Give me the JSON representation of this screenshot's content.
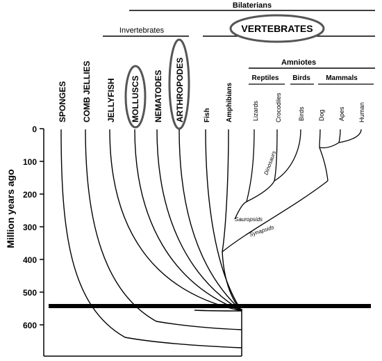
{
  "groups": {
    "bilaterians": "Bilaterians",
    "invertebrates": "Invertebrates",
    "vertebrates": "VERTEBRATES",
    "amniotes": "Amniotes",
    "reptiles": "Reptiles",
    "birds": "Birds",
    "mammals": "Mammals"
  },
  "taxa": {
    "sponges": "SPONGES",
    "comb_jellies": "COMB JELLIES",
    "jellyfish": "JELLYFISH",
    "molluscs": "MOLLUSCS",
    "nematodes": "NEMATODES",
    "arthropodes": "ARTHROPODES",
    "fish": "Fish",
    "amphibians": "Amphibians",
    "lizards": "Lizards",
    "crocodiles": "Crocodiles",
    "birds": "Birds",
    "dog": "Dog",
    "apes": "Apes",
    "human": "Human"
  },
  "clades": {
    "dinosaurs": "Dinosaurs",
    "sauropsids": "Sauropsids",
    "synapsids": "Synapsids"
  },
  "axis": {
    "label": "Million years ago",
    "ticks": [
      "0",
      "100",
      "200",
      "300",
      "400",
      "500",
      "600"
    ]
  },
  "highlighted": [
    "MOLLUSCS",
    "ARTHROPODES",
    "VERTEBRATES"
  ]
}
